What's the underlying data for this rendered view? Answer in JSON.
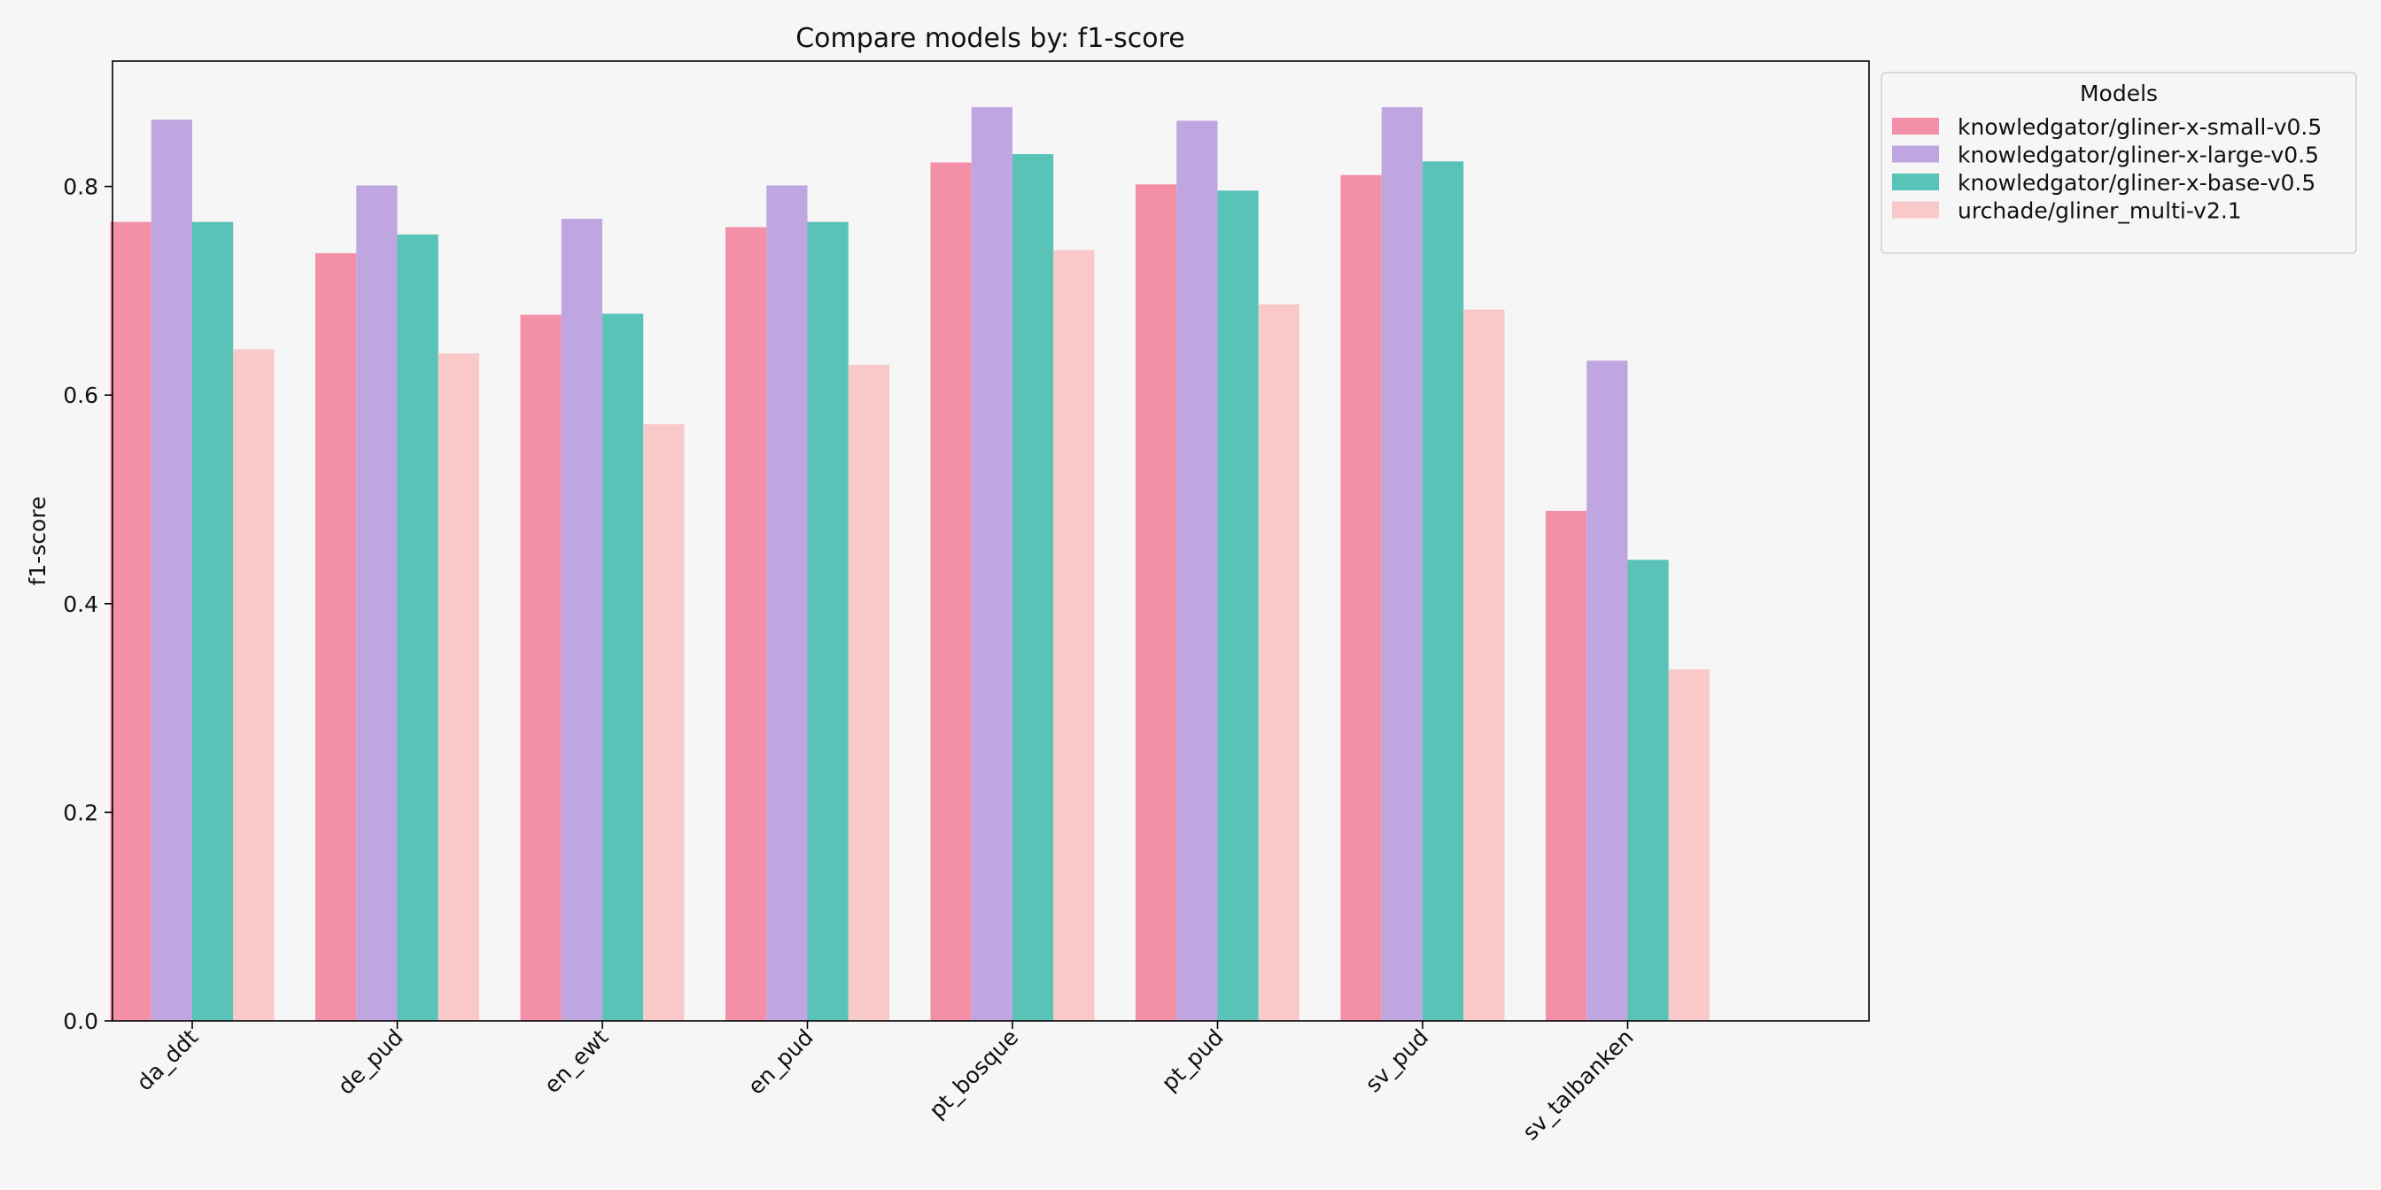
{
  "chart_data": {
    "type": "bar",
    "title": "Compare models by: f1-score",
    "xlabel": "",
    "ylabel": "f1-score",
    "ylim": [
      0,
      0.92
    ],
    "yticks": [
      0.0,
      0.2,
      0.4,
      0.6,
      0.8
    ],
    "ytick_labels": [
      "0.0",
      "0.2",
      "0.4",
      "0.6",
      "0.8"
    ],
    "categories": [
      "da_ddt",
      "de_pud",
      "en_ewt",
      "en_pud",
      "pt_bosque",
      "pt_pud",
      "sv_pud",
      "sv_talbanken"
    ],
    "legend": {
      "title": "Models",
      "position": "outside-top-right"
    },
    "series": [
      {
        "name": "knowledgator/gliner-x-small-v0.5",
        "color": "#f48fa8",
        "values": [
          0.766,
          0.736,
          0.677,
          0.761,
          0.823,
          0.802,
          0.811,
          0.489
        ]
      },
      {
        "name": "knowledgator/gliner-x-large-v0.5",
        "color": "#c0a6e0",
        "values": [
          0.864,
          0.801,
          0.769,
          0.801,
          0.876,
          0.863,
          0.876,
          0.633
        ]
      },
      {
        "name": "knowledgator/gliner-x-base-v0.5",
        "color": "#59c3b8",
        "values": [
          0.766,
          0.754,
          0.678,
          0.766,
          0.831,
          0.796,
          0.824,
          0.442
        ]
      },
      {
        "name": "urchade/gliner_multi-v2.1",
        "color": "#f9c9c9",
        "values": [
          0.644,
          0.64,
          0.572,
          0.629,
          0.739,
          0.687,
          0.682,
          0.337
        ]
      }
    ]
  }
}
